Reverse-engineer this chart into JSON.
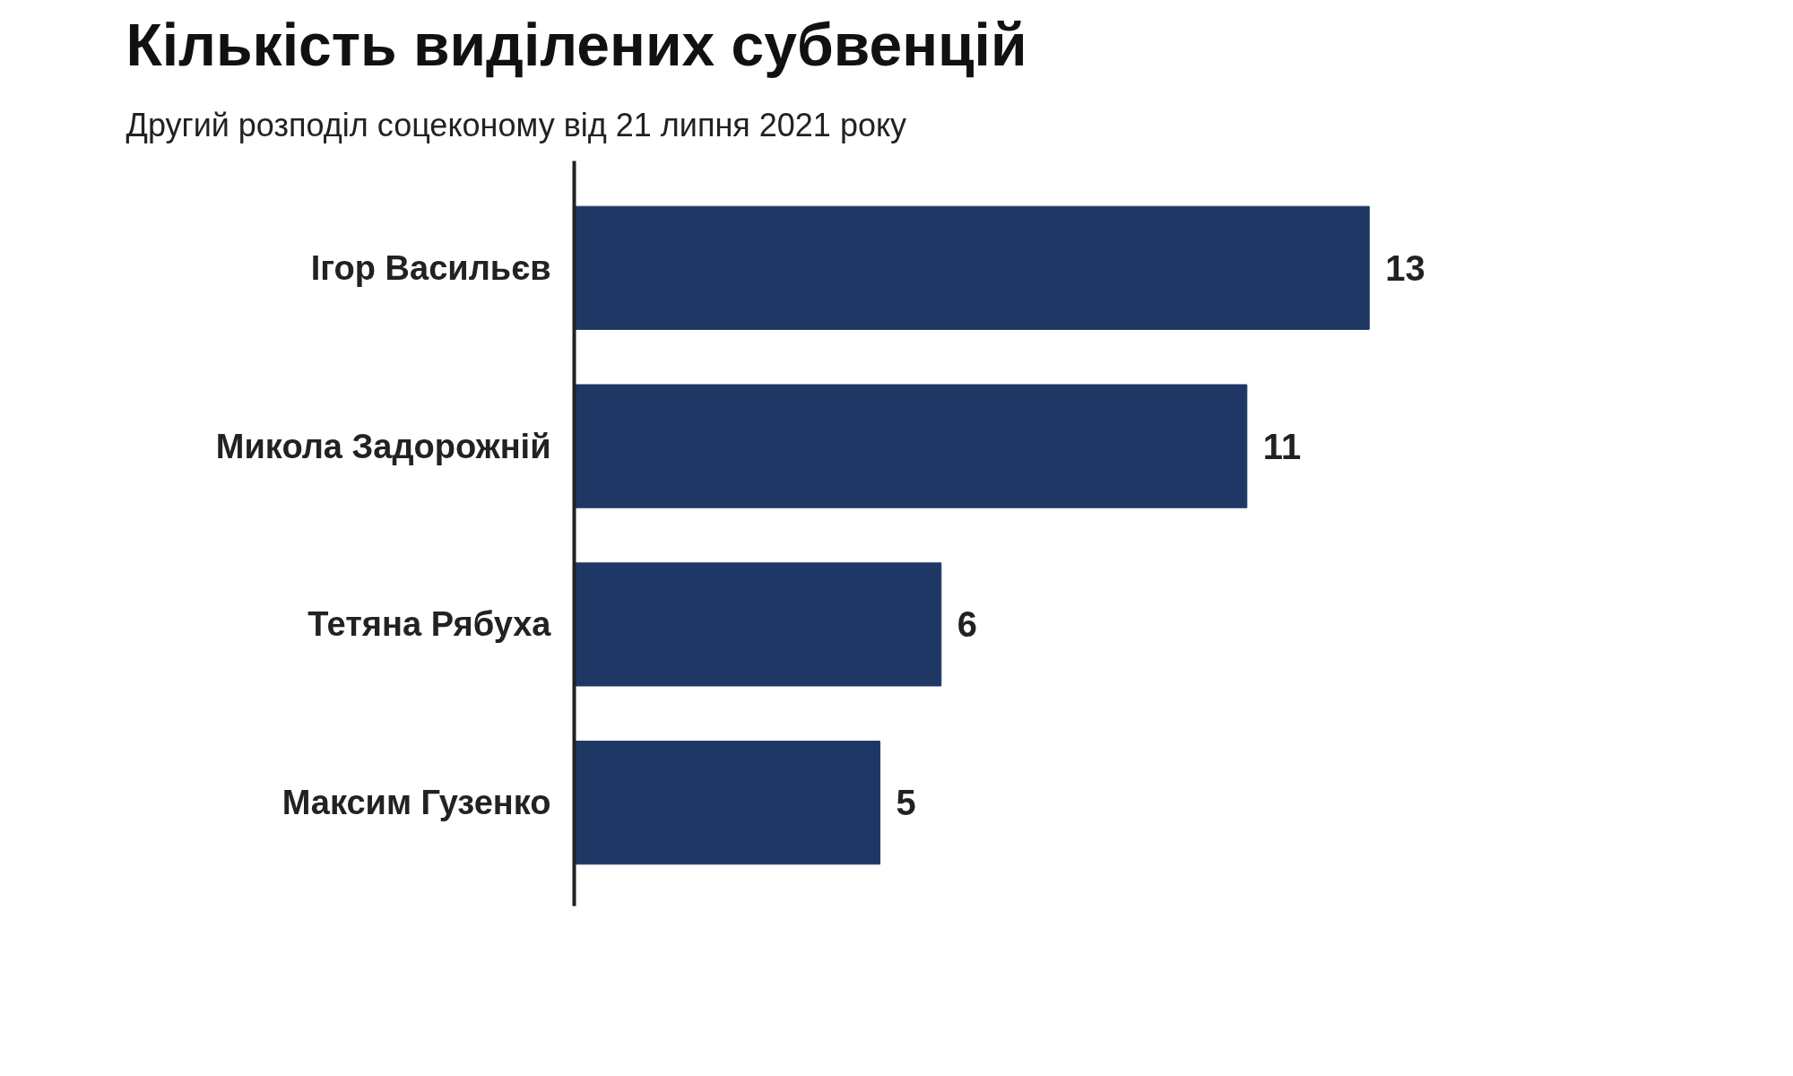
{
  "chart_data": {
    "type": "bar",
    "orientation": "horizontal",
    "title": "Кількість виділених субвенцій",
    "subtitle": "Другий розподіл соцеконому від 21 липня 2021 року",
    "categories": [
      "Ігор Васильєв",
      "Микола Задорожній",
      "Тетяна Рябуха",
      "Максим Гузенко"
    ],
    "values": [
      13,
      11,
      6,
      5
    ],
    "color": "#1f3764",
    "data_labels": true,
    "grid": false
  }
}
